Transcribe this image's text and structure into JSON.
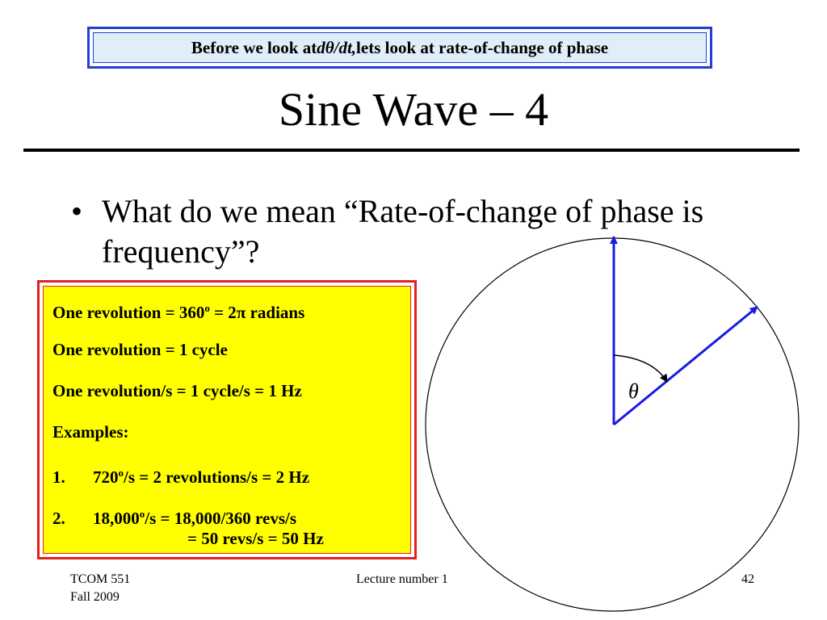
{
  "banner": {
    "prefix": "Before we look at ",
    "math": "dθ/dt,",
    "suffix": " lets look at rate-of-change of phase"
  },
  "title": "Sine Wave – 4",
  "bullet": {
    "symbol": "•",
    "text": "What do we mean “Rate-of-change of phase is frequency”?"
  },
  "info_box": {
    "lines": {
      "rev_deg_a": "One revolution = 360",
      "rev_deg_sup": "o",
      "rev_deg_b": " = 2",
      "rev_deg_pi": "π",
      "rev_deg_c": " radians",
      "rev_cycle": "One revolution = 1 cycle",
      "rev_hz": "One revolution/s = 1 cycle/s = 1 Hz",
      "examples_label": "Examples:"
    },
    "example1": {
      "num": "1.",
      "a": "720",
      "sup": "o",
      "b": "/s = 2 revolutions/s = 2 Hz"
    },
    "example2": {
      "num": "2.",
      "a": "18,000",
      "sup": "o",
      "b": "/s = 18,000/360 revs/s",
      "cont": "= 50 revs/s = 50 Hz"
    }
  },
  "diagram": {
    "angle_label": "θ",
    "vector_color": "#1a1ae6"
  },
  "footer": {
    "course": "TCOM 551",
    "term": "Fall 2009",
    "lecture": "Lecture number 1",
    "page": "42"
  }
}
